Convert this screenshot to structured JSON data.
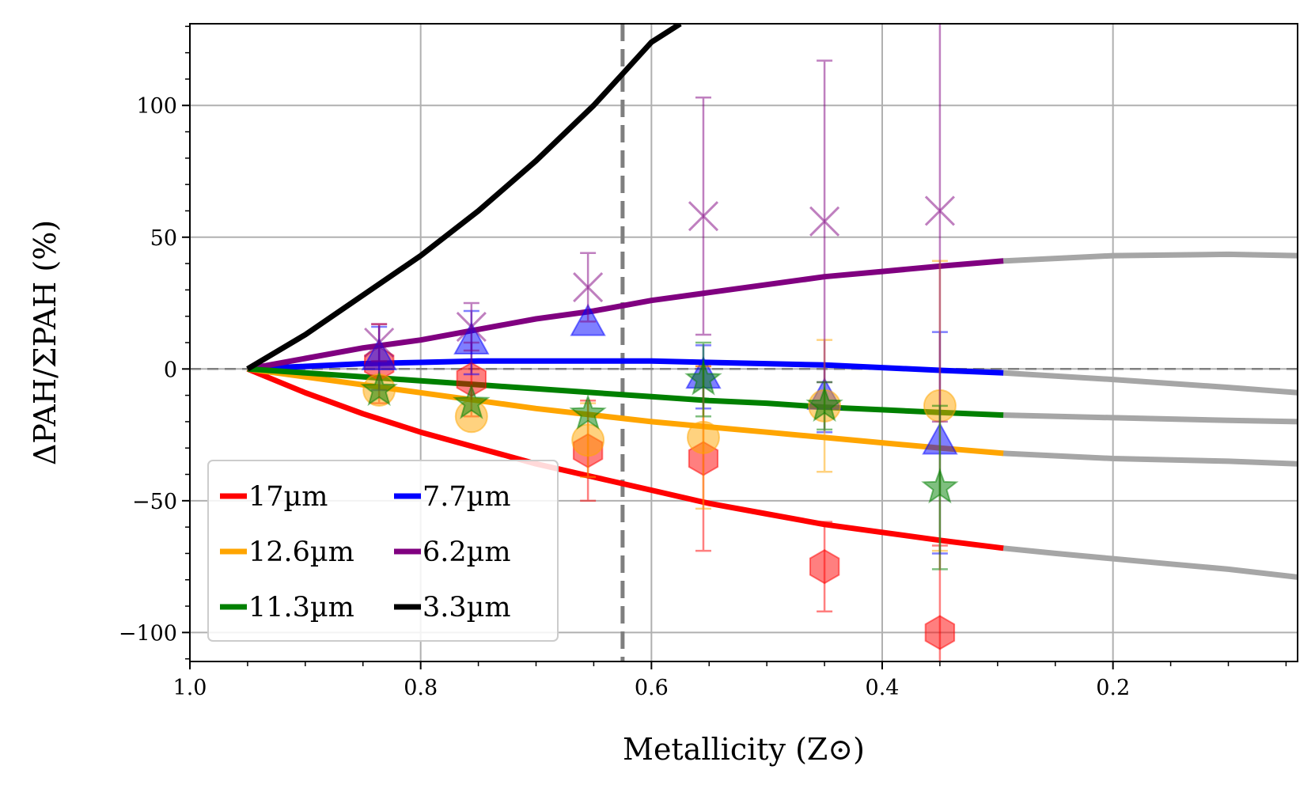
{
  "chart_data": {
    "type": "line",
    "xlabel": "Metallicity (Z⊙)",
    "ylabel": "ΔPAH/ΣPAH (%)",
    "xlim": [
      1.0,
      0.04
    ],
    "ylim": [
      -111,
      131
    ],
    "x_inverted": true,
    "grid": true,
    "legend_position": "lower-left",
    "legend_columns": 2,
    "xticks": [
      1.0,
      0.8,
      0.6,
      0.4,
      0.2
    ],
    "xtick_labels": [
      "1.0",
      "0.8",
      "0.6",
      "0.4",
      "0.2"
    ],
    "yticks": [
      100,
      50,
      0,
      -50,
      -100
    ],
    "ytick_labels": [
      "100",
      "50",
      "0",
      "−50",
      "−100"
    ],
    "zero_line": 0,
    "vertical_line_x": 0.625,
    "extrapolation_color": "#a6a6a6",
    "series": [
      {
        "name": "17µm",
        "color": "#ff0000",
        "x": [
          0.95,
          0.9,
          0.85,
          0.8,
          0.75,
          0.7,
          0.65,
          0.6,
          0.55,
          0.5,
          0.45,
          0.4,
          0.35,
          0.295
        ],
        "y": [
          0,
          -9,
          -17,
          -24,
          -30,
          -36,
          -41,
          -46,
          -51,
          -55,
          -59,
          -62,
          -65,
          -68
        ],
        "extrapolated": {
          "x": [
            0.295,
            0.25,
            0.2,
            0.15,
            0.1,
            0.04
          ],
          "y": [
            -68,
            -70,
            -72,
            -74,
            -76,
            -79
          ]
        },
        "points": {
          "marker": "hexagon",
          "x": [
            0.836,
            0.756,
            0.655,
            0.555,
            0.45,
            0.35
          ],
          "y": [
            2,
            -4,
            -31,
            -34,
            -75,
            -100
          ],
          "err": [
            15,
            14,
            19,
            35,
            17,
            33
          ]
        }
      },
      {
        "name": "7.7µm",
        "color": "#0000ff",
        "x": [
          0.95,
          0.9,
          0.85,
          0.8,
          0.75,
          0.7,
          0.65,
          0.6,
          0.55,
          0.5,
          0.45,
          0.4,
          0.35,
          0.295
        ],
        "y": [
          0,
          1,
          2,
          2.5,
          3,
          3,
          3,
          3,
          2.5,
          2,
          1.5,
          0.5,
          -0.5,
          -1.5
        ],
        "extrapolated": {
          "x": [
            0.295,
            0.2,
            0.1,
            0.04
          ],
          "y": [
            -1.5,
            -4,
            -7,
            -9
          ]
        },
        "points": {
          "marker": "triangle",
          "x": [
            0.836,
            0.756,
            0.655,
            0.555,
            0.45,
            0.35
          ],
          "y": [
            4,
            10,
            17,
            -3,
            -11,
            -28
          ],
          "err": [
            12,
            12,
            0,
            12,
            13,
            42
          ]
        }
      },
      {
        "name": "12.6µm",
        "color": "#ffa500",
        "x": [
          0.95,
          0.9,
          0.85,
          0.8,
          0.75,
          0.7,
          0.65,
          0.6,
          0.55,
          0.5,
          0.45,
          0.4,
          0.35,
          0.295
        ],
        "y": [
          0,
          -3,
          -6,
          -9,
          -12,
          -15,
          -17.5,
          -20,
          -22,
          -24,
          -26,
          -28,
          -30,
          -32
        ],
        "extrapolated": {
          "x": [
            0.295,
            0.2,
            0.1,
            0.04
          ],
          "y": [
            -32,
            -34,
            -35,
            -36
          ]
        },
        "points": {
          "marker": "circle",
          "x": [
            0.836,
            0.756,
            0.655,
            0.555,
            0.45,
            0.35
          ],
          "y": [
            -8,
            -18,
            -27,
            -26,
            -14,
            -14
          ],
          "err": [
            0,
            0,
            14,
            27,
            25,
            55
          ]
        }
      },
      {
        "name": "6.2µm",
        "color": "#800080",
        "x": [
          0.95,
          0.9,
          0.85,
          0.8,
          0.75,
          0.7,
          0.65,
          0.6,
          0.55,
          0.5,
          0.45,
          0.4,
          0.35,
          0.295
        ],
        "y": [
          0,
          4,
          8,
          11,
          15,
          19,
          22,
          26,
          29,
          32,
          35,
          37,
          39,
          41
        ],
        "extrapolated": {
          "x": [
            0.295,
            0.2,
            0.1,
            0.04
          ],
          "y": [
            41,
            43,
            43.5,
            43
          ]
        },
        "points": {
          "marker": "x",
          "x": [
            0.836,
            0.756,
            0.655,
            0.555,
            0.45,
            0.35
          ],
          "y": [
            10,
            16,
            31,
            58,
            56,
            60
          ],
          "err": [
            7,
            9,
            13,
            45,
            61,
            80
          ]
        }
      },
      {
        "name": "11.3µm",
        "color": "#008000",
        "x": [
          0.95,
          0.9,
          0.85,
          0.8,
          0.75,
          0.7,
          0.65,
          0.6,
          0.55,
          0.5,
          0.45,
          0.4,
          0.35,
          0.295
        ],
        "y": [
          0,
          -1.5,
          -3,
          -4.5,
          -6,
          -7.5,
          -9,
          -10.5,
          -12,
          -13,
          -14.5,
          -15.5,
          -16.5,
          -17.5
        ],
        "extrapolated": {
          "x": [
            0.295,
            0.2,
            0.1,
            0.04
          ],
          "y": [
            -17.5,
            -18.5,
            -19.5,
            -20
          ]
        },
        "points": {
          "marker": "star",
          "x": [
            0.836,
            0.756,
            0.655,
            0.555,
            0.45,
            0.35
          ],
          "y": [
            -8,
            -13,
            -17,
            -4,
            -14,
            -45
          ],
          "err": [
            0,
            0,
            0,
            14,
            9,
            31
          ]
        }
      },
      {
        "name": "3.3µm",
        "color": "#000000",
        "x": [
          0.95,
          0.9,
          0.85,
          0.8,
          0.75,
          0.7,
          0.65,
          0.625,
          0.6,
          0.575
        ],
        "y": [
          0,
          13,
          28,
          43,
          60,
          79,
          100,
          112,
          124,
          131
        ]
      }
    ]
  }
}
